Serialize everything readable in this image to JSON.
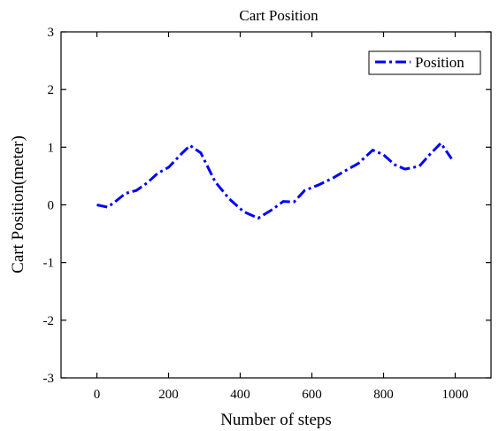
{
  "chart_data": {
    "type": "line",
    "title": "Cart Position",
    "xlabel": "Number of steps",
    "ylabel": "Cart Position(meter)",
    "xlim": [
      -100,
      1100
    ],
    "ylim": [
      -3,
      3
    ],
    "x_ticks": [
      0,
      200,
      400,
      600,
      800,
      1000
    ],
    "y_ticks": [
      -3,
      -2,
      -1,
      0,
      1,
      2,
      3
    ],
    "x_tick_labels": [
      "0",
      "200",
      "400",
      "600",
      "800",
      "1000"
    ],
    "y_tick_labels": [
      "-3",
      "-2",
      "-1",
      "0",
      "1",
      "2",
      "3"
    ],
    "grid": false,
    "legend_position": "top-right",
    "series": [
      {
        "name": "Position",
        "color": "#0000ff",
        "line_style": "dash-dot",
        "x": [
          0,
          30,
          50,
          80,
          110,
          140,
          170,
          200,
          235,
          260,
          290,
          330,
          370,
          410,
          450,
          490,
          520,
          550,
          580,
          620,
          660,
          690,
          730,
          770,
          800,
          830,
          860,
          900,
          930,
          960,
          990
        ],
        "y": [
          0.0,
          -0.04,
          0.05,
          0.2,
          0.25,
          0.38,
          0.55,
          0.65,
          0.88,
          1.03,
          0.9,
          0.4,
          0.1,
          -0.12,
          -0.23,
          -0.08,
          0.06,
          0.05,
          0.25,
          0.35,
          0.47,
          0.58,
          0.72,
          0.95,
          0.87,
          0.7,
          0.62,
          0.67,
          0.88,
          1.07,
          0.8
        ]
      }
    ]
  }
}
